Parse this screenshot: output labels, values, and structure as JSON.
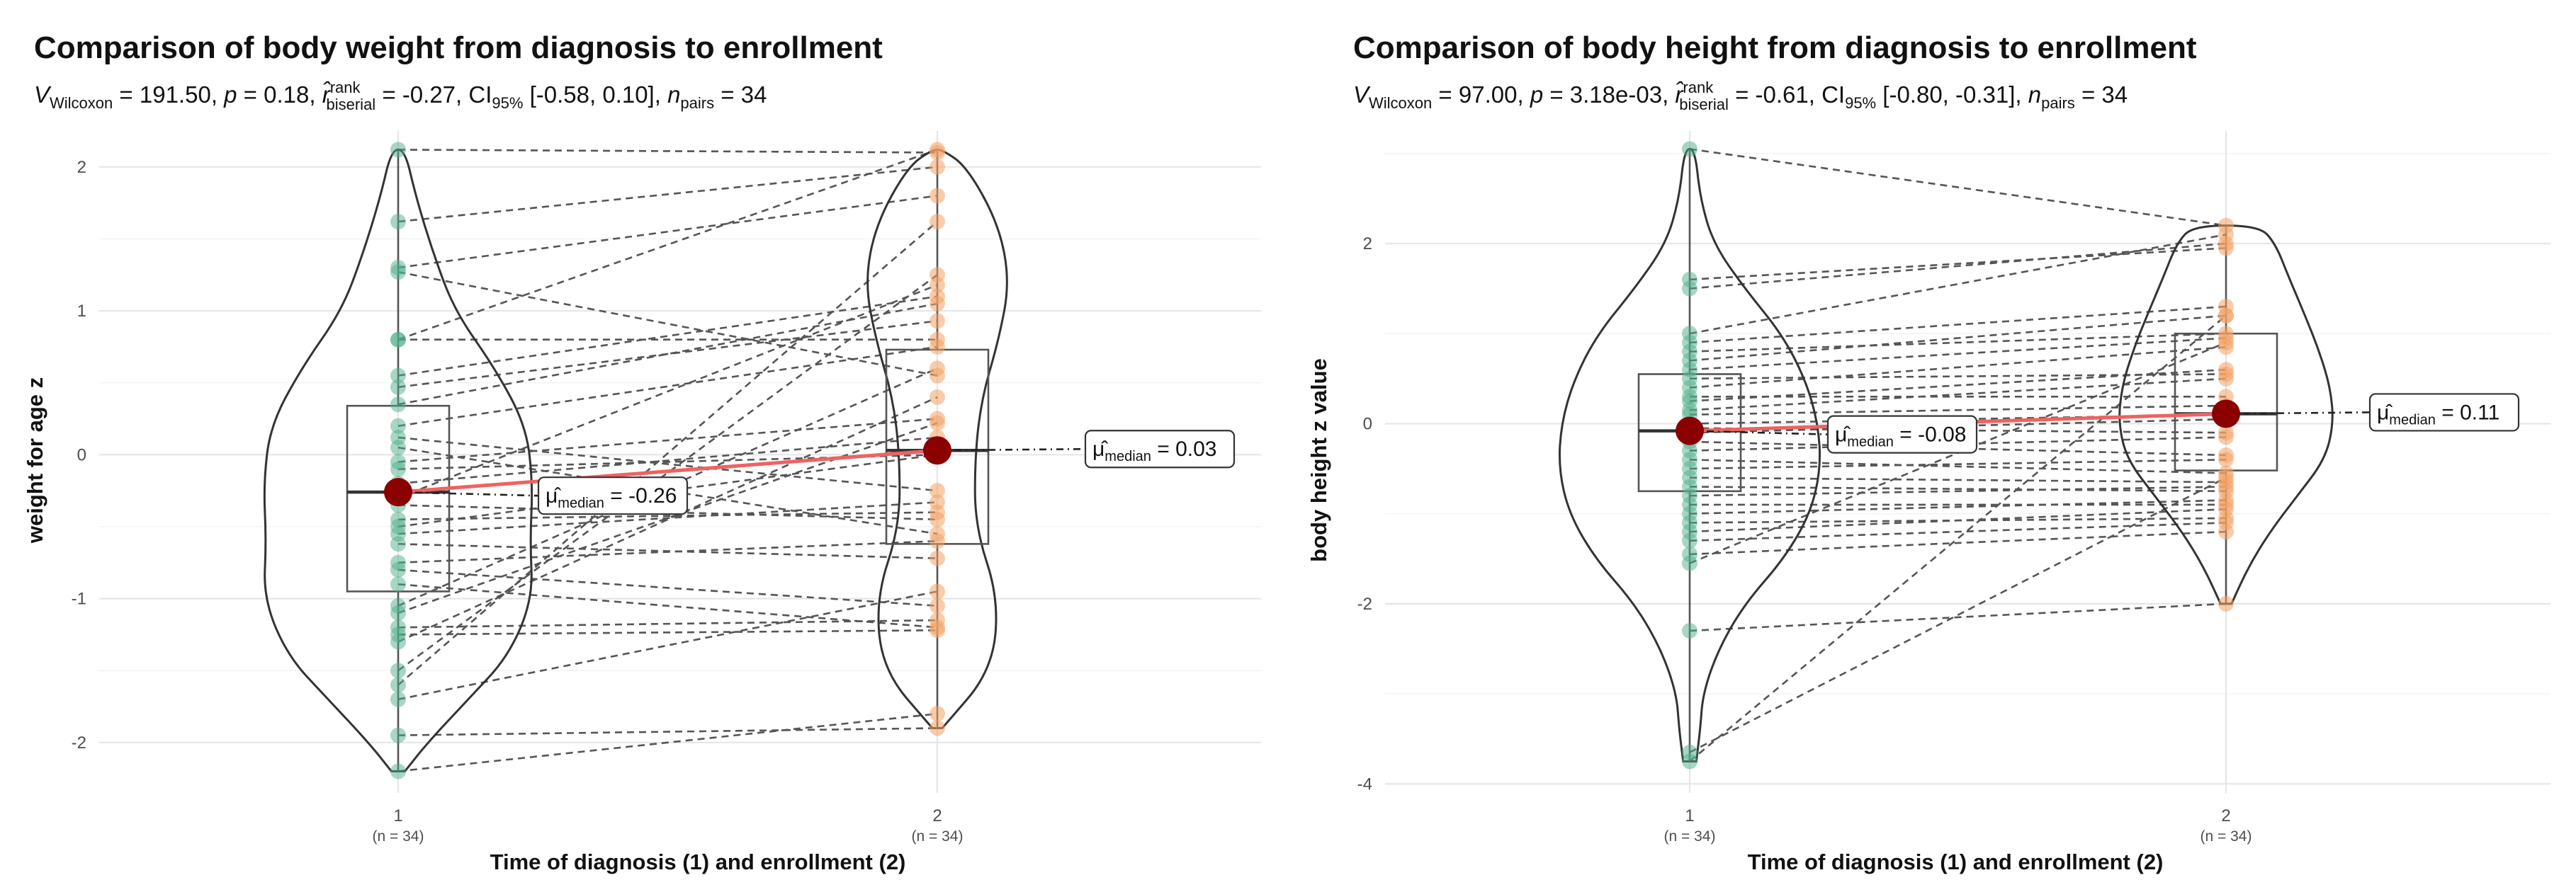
{
  "chart_data": [
    {
      "type": "violin-paired",
      "title": "Comparison of body weight from diagnosis to enrollment",
      "subtitle": {
        "v_sub": "Wilcoxon",
        "v_value": "191.50",
        "p_value": "0.18",
        "r_sup": "rank",
        "r_sub": "biserial",
        "r_value": "-0.27",
        "ci_sub": "95%",
        "ci_value": "[-0.58, 0.10]",
        "n_sub": "pairs",
        "n_value": "34"
      },
      "xlabel": "Time of diagnosis (1) and enrollment (2)",
      "ylabel": "weight for age z",
      "categories": [
        "1",
        "2"
      ],
      "category_n": [
        "(n = 34)",
        "(n = 34)"
      ],
      "yticks": [
        -2,
        -1,
        0,
        1,
        2
      ],
      "ylim": [
        -2.35,
        2.25
      ],
      "medians": [
        -0.26,
        0.03
      ],
      "median_labels": [
        "-0.26",
        "0.03"
      ],
      "median_label_sub": "median",
      "box": [
        {
          "q1": -0.95,
          "median": -0.26,
          "q3": 0.34,
          "min": -2.2,
          "max": 2.12
        },
        {
          "q1": -0.62,
          "median": 0.03,
          "q3": 0.73,
          "min": -1.9,
          "max": 2.12
        }
      ],
      "pairs": [
        [
          2.12,
          2.1
        ],
        [
          1.62,
          2.0
        ],
        [
          1.3,
          1.8
        ],
        [
          1.27,
          0.55
        ],
        [
          0.8,
          2.12
        ],
        [
          0.8,
          0.8
        ],
        [
          0.55,
          1.1
        ],
        [
          0.47,
          0.93
        ],
        [
          0.35,
          1.05
        ],
        [
          0.2,
          0.75
        ],
        [
          0.12,
          -0.25
        ],
        [
          0.05,
          -0.55
        ],
        [
          -0.05,
          0.25
        ],
        [
          -0.1,
          0.0
        ],
        [
          -0.2,
          0.12
        ],
        [
          -0.3,
          1.18
        ],
        [
          -0.35,
          -0.45
        ],
        [
          -0.45,
          -0.4
        ],
        [
          -0.5,
          0.0
        ],
        [
          -0.55,
          -0.33
        ],
        [
          -0.62,
          -0.72
        ],
        [
          -0.75,
          -0.6
        ],
        [
          -0.8,
          -1.05
        ],
        [
          -0.9,
          -1.2
        ],
        [
          -1.05,
          0.6
        ],
        [
          -1.1,
          0.22
        ],
        [
          -1.2,
          -1.15
        ],
        [
          -1.25,
          -1.22
        ],
        [
          -1.3,
          0.4
        ],
        [
          -1.5,
          1.25
        ],
        [
          -1.6,
          1.62
        ],
        [
          -1.7,
          -0.95
        ],
        [
          -1.95,
          -1.9
        ],
        [
          -2.2,
          -1.8
        ]
      ],
      "density_width": [
        [
          -2.2,
          0.05
        ],
        [
          -2.0,
          0.22
        ],
        [
          -1.7,
          0.52
        ],
        [
          -1.4,
          0.82
        ],
        [
          -1.0,
          1.0
        ],
        [
          -0.6,
          0.98
        ],
        [
          -0.2,
          1.0
        ],
        [
          0.2,
          0.95
        ],
        [
          0.6,
          0.72
        ],
        [
          1.0,
          0.42
        ],
        [
          1.4,
          0.26
        ],
        [
          1.8,
          0.13
        ],
        [
          2.12,
          0.05
        ]
      ],
      "density_width_2": [
        [
          -1.9,
          0.05
        ],
        [
          -1.5,
          0.55
        ],
        [
          -1.0,
          0.62
        ],
        [
          -0.5,
          0.38
        ],
        [
          0.0,
          0.38
        ],
        [
          0.4,
          0.45
        ],
        [
          0.8,
          0.62
        ],
        [
          1.2,
          0.73
        ],
        [
          1.6,
          0.62
        ],
        [
          2.0,
          0.3
        ],
        [
          2.12,
          0.05
        ]
      ]
    },
    {
      "type": "violin-paired",
      "title": "Comparison of body height from diagnosis to enrollment",
      "subtitle": {
        "v_sub": "Wilcoxon",
        "v_value": "97.00",
        "p_value": "3.18e-03",
        "r_sup": "rank",
        "r_sub": "biserial",
        "r_value": "-0.61",
        "ci_sub": "95%",
        "ci_value": "[-0.80, -0.31]",
        "n_sub": "pairs",
        "n_value": "34"
      },
      "xlabel": "Time of diagnosis (1) and enrollment (2)",
      "ylabel": "body height z value",
      "categories": [
        "1",
        "2"
      ],
      "category_n": [
        "(n = 34)",
        "(n = 34)"
      ],
      "yticks": [
        -4,
        -2,
        0,
        2
      ],
      "ylim": [
        -4.1,
        3.25
      ],
      "medians": [
        -0.08,
        0.11
      ],
      "median_labels": [
        "-0.08",
        "0.11"
      ],
      "median_label_sub": "median",
      "box": [
        {
          "q1": -0.75,
          "median": -0.08,
          "q3": 0.55,
          "min": -3.75,
          "max": 3.05
        },
        {
          "q1": -0.52,
          "median": 0.11,
          "q3": 1.0,
          "min": -2.0,
          "max": 2.2
        }
      ],
      "pairs": [
        [
          3.05,
          2.2
        ],
        [
          1.6,
          1.95
        ],
        [
          1.5,
          2.0
        ],
        [
          1.0,
          2.1
        ],
        [
          0.9,
          1.3
        ],
        [
          0.8,
          1.0
        ],
        [
          0.7,
          1.2
        ],
        [
          0.6,
          0.95
        ],
        [
          0.5,
          0.55
        ],
        [
          0.4,
          0.85
        ],
        [
          0.3,
          0.3
        ],
        [
          0.25,
          0.6
        ],
        [
          0.15,
          0.5
        ],
        [
          0.1,
          0.2
        ],
        [
          0.0,
          0.1
        ],
        [
          -0.05,
          -0.1
        ],
        [
          -0.1,
          0.05
        ],
        [
          -0.2,
          -0.35
        ],
        [
          -0.3,
          -0.15
        ],
        [
          -0.4,
          -0.55
        ],
        [
          -0.5,
          -0.4
        ],
        [
          -0.6,
          -0.65
        ],
        [
          -0.7,
          -0.75
        ],
        [
          -0.8,
          -0.7
        ],
        [
          -0.9,
          -0.9
        ],
        [
          -1.0,
          -0.85
        ],
        [
          -1.1,
          -1.05
        ],
        [
          -1.2,
          -0.95
        ],
        [
          -1.3,
          -1.1
        ],
        [
          -1.45,
          -1.2
        ],
        [
          -1.55,
          0.9
        ],
        [
          -2.3,
          -2.0
        ],
        [
          -3.65,
          -0.6
        ],
        [
          -3.75,
          1.2
        ]
      ],
      "density_width": [
        [
          -3.75,
          0.05
        ],
        [
          -3.4,
          0.08
        ],
        [
          -3.0,
          0.1
        ],
        [
          -2.5,
          0.22
        ],
        [
          -2.0,
          0.42
        ],
        [
          -1.5,
          0.72
        ],
        [
          -1.0,
          0.92
        ],
        [
          -0.5,
          1.0
        ],
        [
          0.0,
          0.98
        ],
        [
          0.5,
          0.88
        ],
        [
          1.0,
          0.7
        ],
        [
          1.5,
          0.42
        ],
        [
          2.0,
          0.18
        ],
        [
          2.5,
          0.08
        ],
        [
          3.05,
          0.04
        ]
      ],
      "density_width_2": [
        [
          -2.0,
          0.05
        ],
        [
          -1.6,
          0.2
        ],
        [
          -1.2,
          0.4
        ],
        [
          -0.8,
          0.65
        ],
        [
          -0.4,
          0.9
        ],
        [
          0.0,
          0.98
        ],
        [
          0.4,
          0.95
        ],
        [
          0.8,
          0.85
        ],
        [
          1.2,
          0.72
        ],
        [
          1.6,
          0.58
        ],
        [
          2.0,
          0.45
        ],
        [
          2.2,
          0.3
        ]
      ]
    }
  ]
}
